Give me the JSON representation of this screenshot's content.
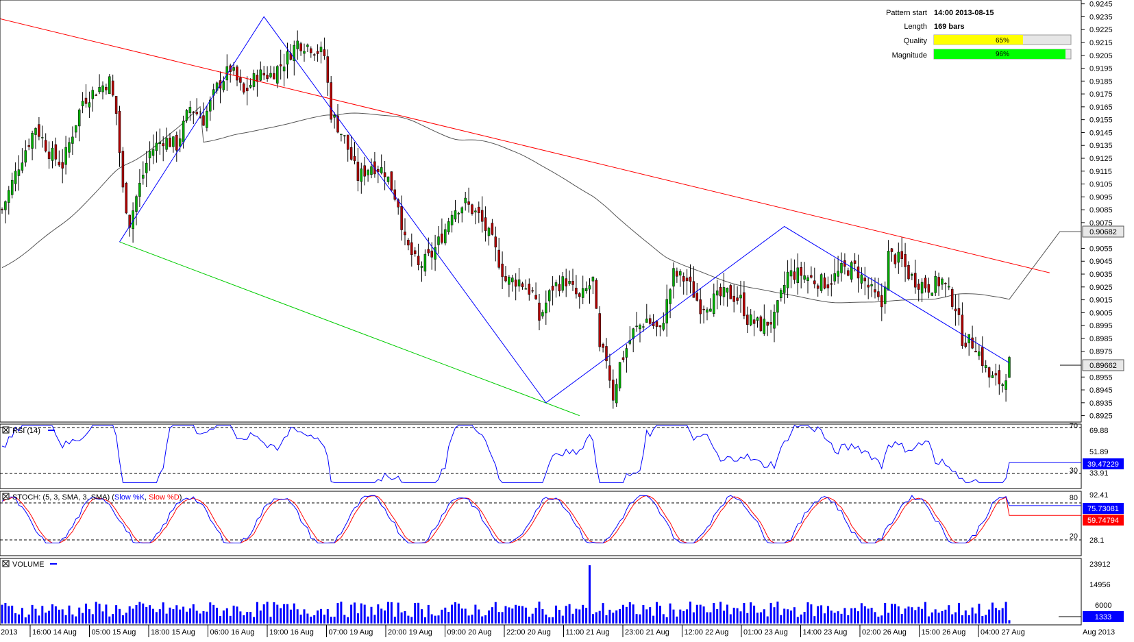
{
  "info": {
    "pattern_start_label": "Pattern start",
    "pattern_start_value": "14:00 2013-08-15",
    "length_label": "Length",
    "length_value": "169 bars",
    "quality_label": "Quality",
    "quality_value": "65%",
    "quality_fraction": 0.65,
    "magnitude_label": "Magnitude",
    "magnitude_value": "96%",
    "magnitude_fraction": 0.96,
    "quality_color": "#ffff00",
    "magnitude_color": "#00ff00"
  },
  "price_axis": {
    "ticks": [
      "0.9245",
      "0.9235",
      "0.9225",
      "0.9215",
      "0.9205",
      "0.9195",
      "0.9185",
      "0.9175",
      "0.9165",
      "0.9155",
      "0.9145",
      "0.9135",
      "0.9125",
      "0.9115",
      "0.9105",
      "0.9095",
      "0.9085",
      "0.9075",
      "0.9055",
      "0.9045",
      "0.9035",
      "0.9025",
      "0.9015",
      "0.9005",
      "0.8995",
      "0.8985",
      "0.8975",
      "0.8955",
      "0.8945",
      "0.8935",
      "0.8925"
    ],
    "ma_value_label": "0.90682",
    "last_price_label": "0.89662"
  },
  "rsi": {
    "title": "RSI (14)",
    "ticks": [
      "70",
      "69.88",
      "51.89",
      "30",
      "33.91"
    ],
    "value_label": "39.47229",
    "color": "#0000ff"
  },
  "stoch": {
    "title_prefix": "STOCH: (5, 3, SMA, 3, SMA) (",
    "k_label": "Slow %K",
    "sep": ", ",
    "d_label": "Slow %D",
    "title_suffix": ")",
    "ticks": [
      "80",
      "92.41",
      "20",
      "28.1"
    ],
    "k_value_label": "75.73081",
    "d_value_label": "59.74794",
    "k_color": "#0000ff",
    "d_color": "#ff0000"
  },
  "volume": {
    "title": "VOLUME",
    "ticks": [
      "23912",
      "14956",
      "6000"
    ],
    "value_label": "1333",
    "color": "#0000ff"
  },
  "time_axis": {
    "labels": [
      "2013",
      "16:00 14 Aug",
      "05:00 15 Aug",
      "18:00 15 Aug",
      "06:00 16 Aug",
      "19:00 16 Aug",
      "07:00 19 Aug",
      "20:00 19 Aug",
      "09:00 20 Aug",
      "22:00 20 Aug",
      "11:00 21 Aug",
      "23:00 21 Aug",
      "12:00 22 Aug",
      "01:00 23 Aug",
      "14:00 23 Aug",
      "02:00 26 Aug",
      "15:00 26 Aug",
      "04:00 27 Aug",
      "Aug 2013"
    ]
  },
  "chart_data": {
    "type": "candlestick",
    "symbol_pattern": "channel down",
    "ylim": [
      0.892,
      0.9248
    ],
    "colors": {
      "up": "#00b000",
      "down": "#b00000",
      "trend_upper": "#ff0000",
      "trend_lower": "#00cc00",
      "zigzag": "#0000ff",
      "ma": "#555555"
    },
    "candle_close_path": [
      [
        0,
        0.9085
      ],
      [
        5,
        0.912
      ],
      [
        10,
        0.915
      ],
      [
        14,
        0.913
      ],
      [
        18,
        0.912
      ],
      [
        24,
        0.917
      ],
      [
        28,
        0.9178
      ],
      [
        32,
        0.9185
      ],
      [
        34,
        0.916
      ],
      [
        36,
        0.91
      ],
      [
        38,
        0.9075
      ],
      [
        40,
        0.9095
      ],
      [
        44,
        0.913
      ],
      [
        48,
        0.914
      ],
      [
        52,
        0.9135
      ],
      [
        56,
        0.9165
      ],
      [
        60,
        0.9155
      ],
      [
        64,
        0.918
      ],
      [
        68,
        0.9195
      ],
      [
        72,
        0.9175
      ],
      [
        76,
        0.919
      ],
      [
        80,
        0.919
      ],
      [
        84,
        0.92
      ],
      [
        88,
        0.9215
      ],
      [
        92,
        0.9212
      ],
      [
        96,
        0.9205
      ],
      [
        98,
        0.916
      ],
      [
        102,
        0.914
      ],
      [
        106,
        0.911
      ],
      [
        110,
        0.912
      ],
      [
        114,
        0.9115
      ],
      [
        118,
        0.909
      ],
      [
        120,
        0.906
      ],
      [
        124,
        0.904
      ],
      [
        128,
        0.905
      ],
      [
        132,
        0.907
      ],
      [
        134,
        0.9085
      ],
      [
        138,
        0.909
      ],
      [
        142,
        0.908
      ],
      [
        146,
        0.906
      ],
      [
        150,
        0.903
      ],
      [
        154,
        0.903
      ],
      [
        158,
        0.902
      ],
      [
        160,
        0.9
      ],
      [
        164,
        0.9025
      ],
      [
        168,
        0.903
      ],
      [
        172,
        0.9015
      ],
      [
        176,
        0.903
      ],
      [
        178,
        0.8975
      ],
      [
        180,
        0.897
      ],
      [
        182,
        0.894
      ],
      [
        184,
        0.8965
      ],
      [
        188,
        0.899
      ],
      [
        192,
        0.9
      ],
      [
        196,
        0.899
      ],
      [
        200,
        0.9035
      ],
      [
        204,
        0.903
      ],
      [
        208,
        0.901
      ],
      [
        212,
        0.9015
      ],
      [
        216,
        0.902
      ],
      [
        220,
        0.9015
      ],
      [
        222,
        0.9
      ],
      [
        226,
        0.8995
      ],
      [
        230,
        0.9
      ],
      [
        234,
        0.9035
      ],
      [
        238,
        0.9035
      ],
      [
        242,
        0.903
      ],
      [
        246,
        0.9028
      ],
      [
        250,
        0.9038
      ],
      [
        254,
        0.904
      ],
      [
        258,
        0.9025
      ],
      [
        262,
        0.901
      ],
      [
        264,
        0.905
      ],
      [
        268,
        0.9045
      ],
      [
        270,
        0.9035
      ],
      [
        272,
        0.903
      ],
      [
        276,
        0.9025
      ],
      [
        280,
        0.903
      ],
      [
        284,
        0.901
      ],
      [
        286,
        0.8985
      ],
      [
        290,
        0.898
      ],
      [
        294,
        0.8955
      ],
      [
        298,
        0.895
      ],
      [
        300,
        0.8966
      ]
    ],
    "trendlines": [
      {
        "name": "upper",
        "x": [
          -30,
          312
        ],
        "y": [
          0.9252,
          0.9036
        ]
      },
      {
        "name": "lower",
        "x": [
          35,
          172
        ],
        "y": [
          0.906,
          0.8925
        ]
      }
    ],
    "zigzag": {
      "x": [
        35,
        78,
        162,
        233,
        300
      ],
      "y": [
        0.906,
        0.9235,
        0.8935,
        0.9072,
        0.8966
      ]
    },
    "rsi_last": 39.47229,
    "stoch_k_last": 75.73081,
    "stoch_d_last": 59.74794,
    "volume_last": 1333,
    "volume_max": 23912
  }
}
